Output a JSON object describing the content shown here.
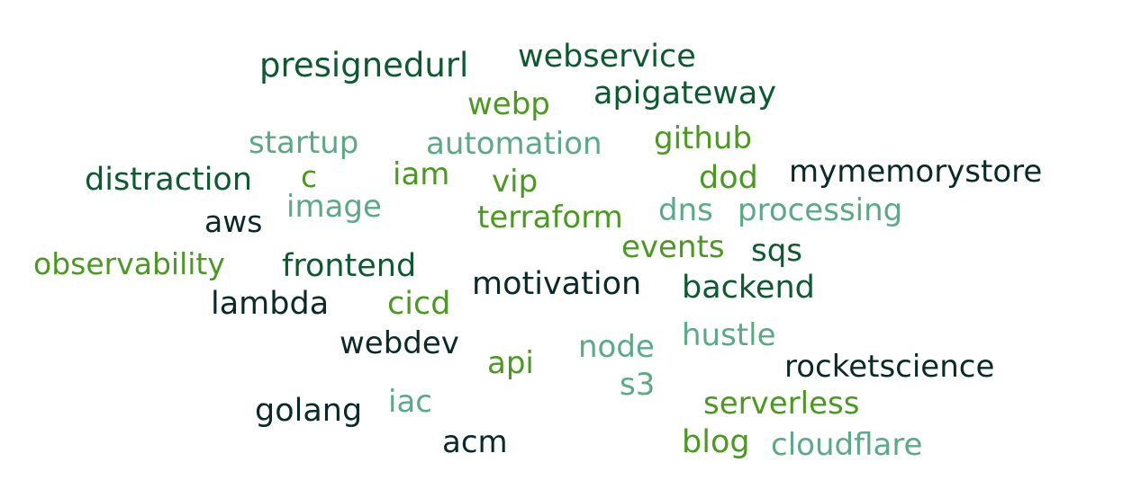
{
  "colors": {
    "dark": "#0a2a2a",
    "deep": "#0b5a30",
    "mid": "#1f7a2e",
    "lime": "#4a9a1f",
    "sea": "#5aaa88",
    "background": "#ffffff"
  },
  "words": [
    {
      "text": "presignedurl",
      "color": "deep"
    },
    {
      "text": "webservice",
      "color": "deep"
    },
    {
      "text": "webp",
      "color": "lime"
    },
    {
      "text": "apigateway",
      "color": "deep"
    },
    {
      "text": "startup",
      "color": "sea"
    },
    {
      "text": "automation",
      "color": "sea"
    },
    {
      "text": "github",
      "color": "lime"
    },
    {
      "text": "distraction",
      "color": "deep"
    },
    {
      "text": "c",
      "color": "lime"
    },
    {
      "text": "iam",
      "color": "lime"
    },
    {
      "text": "vip",
      "color": "lime"
    },
    {
      "text": "dod",
      "color": "lime"
    },
    {
      "text": "mymemorystore",
      "color": "dark"
    },
    {
      "text": "image",
      "color": "sea"
    },
    {
      "text": "aws",
      "color": "dark"
    },
    {
      "text": "terraform",
      "color": "lime"
    },
    {
      "text": "dns",
      "color": "sea"
    },
    {
      "text": "processing",
      "color": "sea"
    },
    {
      "text": "events",
      "color": "lime"
    },
    {
      "text": "sqs",
      "color": "deep"
    },
    {
      "text": "observability",
      "color": "lime"
    },
    {
      "text": "frontend",
      "color": "deep"
    },
    {
      "text": "motivation",
      "color": "dark"
    },
    {
      "text": "backend",
      "color": "deep"
    },
    {
      "text": "lambda",
      "color": "dark"
    },
    {
      "text": "cicd",
      "color": "lime"
    },
    {
      "text": "hustle",
      "color": "sea"
    },
    {
      "text": "webdev",
      "color": "dark"
    },
    {
      "text": "node",
      "color": "sea"
    },
    {
      "text": "api",
      "color": "lime"
    },
    {
      "text": "rocketscience",
      "color": "dark"
    },
    {
      "text": "s3",
      "color": "sea"
    },
    {
      "text": "iac",
      "color": "sea"
    },
    {
      "text": "serverless",
      "color": "lime"
    },
    {
      "text": "golang",
      "color": "dark"
    },
    {
      "text": "acm",
      "color": "dark"
    },
    {
      "text": "blog",
      "color": "lime"
    },
    {
      "text": "cloudflare",
      "color": "sea"
    }
  ]
}
